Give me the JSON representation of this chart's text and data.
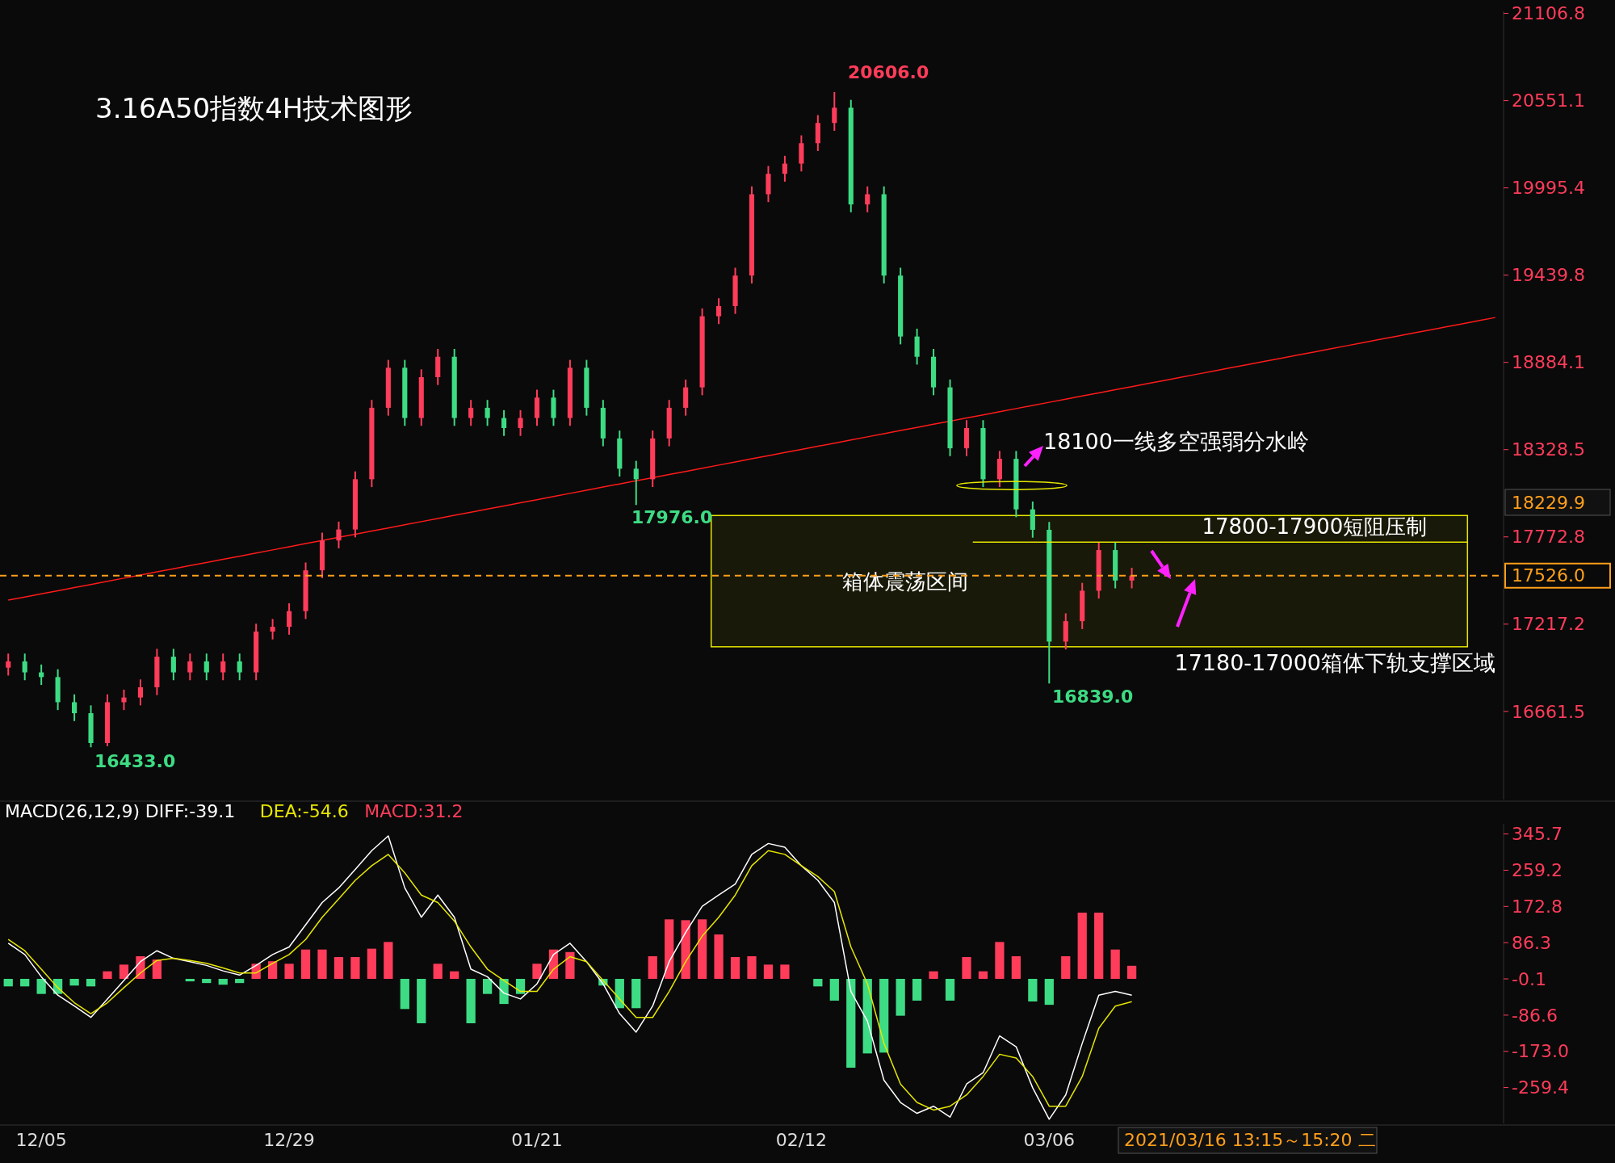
{
  "chart_data": [
    {
      "type": "candlestick",
      "title": "3.16A50指数4H技术图形",
      "categories": [
        null,
        null,
        null,
        null,
        null,
        null,
        null,
        null,
        null,
        null,
        null,
        null,
        null,
        null,
        null,
        null,
        null,
        null,
        null,
        null,
        null,
        null,
        null,
        null,
        null,
        null,
        null,
        null,
        null,
        null,
        null,
        null,
        null,
        null,
        null,
        null,
        null,
        null,
        null,
        null,
        null,
        null,
        null,
        null,
        null,
        null,
        null,
        null,
        null,
        null,
        null,
        null,
        null,
        null,
        null,
        null,
        null,
        null,
        null,
        null,
        null,
        null,
        null,
        null,
        null,
        null,
        null,
        null,
        null,
        null,
        null,
        null,
        null,
        null,
        null,
        null,
        null,
        null,
        null,
        null,
        null,
        null,
        null,
        null,
        null,
        null,
        null,
        null,
        null,
        null,
        null
      ],
      "ohlc": [
        [
          16940,
          17030,
          16890,
          16980
        ],
        [
          16980,
          17030,
          16860,
          16910
        ],
        [
          16910,
          16960,
          16830,
          16880
        ],
        [
          16880,
          16930,
          16670,
          16720
        ],
        [
          16720,
          16770,
          16600,
          16650
        ],
        [
          16650,
          16700,
          16433,
          16460
        ],
        [
          16460,
          16770,
          16440,
          16720
        ],
        [
          16720,
          16800,
          16670,
          16750
        ],
        [
          16750,
          16865,
          16700,
          16815
        ],
        [
          16815,
          17060,
          16765,
          17010
        ],
        [
          17010,
          17060,
          16860,
          16910
        ],
        [
          16910,
          17030,
          16860,
          16980
        ],
        [
          16980,
          17030,
          16860,
          16910
        ],
        [
          16910,
          17030,
          16860,
          16980
        ],
        [
          16980,
          17030,
          16860,
          16910
        ],
        [
          16910,
          17220,
          16860,
          17170
        ],
        [
          17170,
          17250,
          17120,
          17200
        ],
        [
          17200,
          17350,
          17150,
          17300
        ],
        [
          17300,
          17610,
          17250,
          17560
        ],
        [
          17560,
          17800,
          17510,
          17750
        ],
        [
          17750,
          17870,
          17700,
          17820
        ],
        [
          17820,
          18190,
          17770,
          18140
        ],
        [
          18140,
          18645,
          18090,
          18595
        ],
        [
          18595,
          18900,
          18545,
          18850
        ],
        [
          18850,
          18900,
          18480,
          18530
        ],
        [
          18530,
          18840,
          18480,
          18790
        ],
        [
          18790,
          18970,
          18740,
          18920
        ],
        [
          18920,
          18970,
          18480,
          18530
        ],
        [
          18530,
          18645,
          18480,
          18595
        ],
        [
          18595,
          18645,
          18480,
          18530
        ],
        [
          18530,
          18580,
          18416,
          18466
        ],
        [
          18466,
          18580,
          18416,
          18530
        ],
        [
          18530,
          18710,
          18480,
          18660
        ],
        [
          18660,
          18710,
          18480,
          18530
        ],
        [
          18530,
          18900,
          18480,
          18850
        ],
        [
          18850,
          18900,
          18545,
          18595
        ],
        [
          18595,
          18645,
          18350,
          18400
        ],
        [
          18400,
          18450,
          18157,
          18207
        ],
        [
          18207,
          18257,
          17976,
          18140
        ],
        [
          18140,
          18450,
          18090,
          18400
        ],
        [
          18400,
          18645,
          18350,
          18595
        ],
        [
          18595,
          18775,
          18545,
          18725
        ],
        [
          18725,
          19228,
          18675,
          19178
        ],
        [
          19178,
          19293,
          19128,
          19243
        ],
        [
          19243,
          19487,
          19193,
          19437
        ],
        [
          19437,
          20005,
          19387,
          19955
        ],
        [
          19955,
          20135,
          19905,
          20085
        ],
        [
          20085,
          20200,
          20035,
          20150
        ],
        [
          20150,
          20330,
          20100,
          20280
        ],
        [
          20280,
          20459,
          20230,
          20409
        ],
        [
          20409,
          20606,
          20359,
          20506
        ],
        [
          20506,
          20556,
          19840,
          19890
        ],
        [
          19890,
          20005,
          19840,
          19955
        ],
        [
          19955,
          20005,
          19387,
          19437
        ],
        [
          19437,
          19487,
          18999,
          19049
        ],
        [
          19049,
          19099,
          18870,
          18920
        ],
        [
          18920,
          18970,
          18675,
          18725
        ],
        [
          18725,
          18775,
          18287,
          18337
        ],
        [
          18337,
          18516,
          18287,
          18466
        ],
        [
          18466,
          18516,
          18090,
          18140
        ],
        [
          18140,
          18320,
          18090,
          18270
        ],
        [
          18270,
          18320,
          17898,
          17948
        ],
        [
          17948,
          17998,
          17768,
          17818
        ],
        [
          17818,
          17868,
          16839,
          17106
        ],
        [
          17106,
          17286,
          17056,
          17236
        ],
        [
          17236,
          17480,
          17186,
          17430
        ],
        [
          17430,
          17739,
          17380,
          17689
        ],
        [
          17689,
          17739,
          17445,
          17495
        ],
        [
          17495,
          17576,
          17445,
          17526
        ],
        null,
        null,
        null,
        null,
        null,
        null,
        null,
        null,
        null,
        null,
        null,
        null,
        null,
        null,
        null,
        null,
        null,
        null,
        null,
        null,
        null,
        null
      ],
      "colors": [
        "#ff3c5a",
        "#3ddc84",
        "#3ddc84",
        "#3ddc84",
        "#3ddc84",
        "#3ddc84",
        "#ff3c5a",
        "#ff3c5a",
        "#ff3c5a",
        "#ff3c5a",
        "#3ddc84",
        "#ff3c5a",
        "#3ddc84",
        "#ff3c5a",
        "#3ddc84",
        "#ff3c5a",
        "#ff3c5a",
        "#ff3c5a",
        "#ff3c5a",
        "#ff3c5a",
        "#ff3c5a",
        "#ff3c5a",
        "#ff3c5a",
        "#ff3c5a",
        "#3ddc84",
        "#ff3c5a",
        "#ff3c5a",
        "#3ddc84",
        "#ff3c5a",
        "#3ddc84",
        "#3ddc84",
        "#ff3c5a",
        "#ff3c5a",
        "#3ddc84",
        "#ff3c5a",
        "#3ddc84",
        "#3ddc84",
        "#3ddc84",
        "#3ddc84",
        "#ff3c5a",
        "#ff3c5a",
        "#ff3c5a",
        "#ff3c5a",
        "#ff3c5a",
        "#ff3c5a",
        "#ff3c5a",
        "#ff3c5a",
        "#ff3c5a",
        "#ff3c5a",
        "#ff3c5a",
        "#ff3c5a",
        "#3ddc84",
        "#ff3c5a",
        "#3ddc84",
        "#3ddc84",
        "#3ddc84",
        "#3ddc84",
        "#3ddc84",
        "#ff3c5a",
        "#3ddc84",
        "#ff3c5a",
        "#3ddc84",
        "#3ddc84",
        "#3ddc84",
        "#ff3c5a",
        "#ff3c5a",
        "#ff3c5a",
        "#3ddc84",
        "#ff3c5a",
        null,
        null,
        null,
        null,
        null,
        null,
        null,
        null,
        null,
        null,
        null,
        null,
        null,
        null,
        null,
        null,
        null,
        null,
        null,
        null,
        null,
        null
      ],
      "series": [
        {
          "type": "line",
          "color": "#ff1a1a",
          "values": [
            17370,
            17390,
            17410,
            17430,
            17450,
            17470,
            17490,
            17510,
            17530,
            17550,
            17570,
            17590,
            17610,
            17630,
            17650,
            17670,
            17690,
            17710,
            17730,
            17750,
            17770,
            17790,
            17810,
            17830,
            17850,
            17870,
            17890,
            17910,
            17930,
            17950,
            17970,
            17990,
            18010,
            18030,
            18050,
            18070,
            18090,
            18110,
            18130,
            18150,
            18170,
            18190,
            18210,
            18230,
            18250,
            18270,
            18290,
            18310,
            18330,
            18350,
            18370,
            18390,
            18410,
            18430,
            18450,
            18470,
            18490,
            18510,
            18530,
            18550,
            18570,
            18590,
            18610,
            18630,
            18650,
            18670,
            18690,
            18710,
            18730,
            18750,
            18770,
            18790,
            18810,
            18830,
            18850,
            18870,
            18890,
            18910,
            18930,
            18950,
            18970,
            18990,
            19010,
            19030,
            19050,
            19070,
            19090,
            19110,
            19130,
            19150,
            19170
          ]
        }
      ],
      "ylim": [
        16100,
        21120
      ],
      "yticks": [
        16661.5,
        17217.2,
        17772.8,
        18328.5,
        18884.1,
        19439.8,
        19995.4,
        20551.1,
        21106.8
      ],
      "tick_labels": "y",
      "ref_lines": [
        {
          "axis": "y",
          "value": 17526.0,
          "label": "17526.0",
          "color": "#ff9f1a",
          "line_style": "dashed"
        },
        {
          "axis": "y",
          "value": 17740,
          "label": "17800-17900短阻压制",
          "color": "#e6e600",
          "line_style": "solid"
        }
      ],
      "bands": [
        {
          "axis": "y",
          "from": 17073,
          "to": 17909,
          "label": "箱体震荡区间",
          "color": "#e6e600"
        }
      ],
      "annotations": [
        "20606.0",
        "17976.0",
        "16839.0",
        "16433.0",
        "18100一线多空强弱分水岭",
        "17180-17000箱体下轨支撑区域",
        "18229.9"
      ]
    },
    {
      "type": "bar",
      "title": "MACD(26,12,9)",
      "legend": "top left",
      "categories": [
        null,
        null,
        "12/05",
        null,
        null,
        null,
        null,
        null,
        null,
        null,
        null,
        null,
        null,
        null,
        null,
        null,
        null,
        "12/29",
        null,
        null,
        null,
        null,
        null,
        null,
        null,
        null,
        null,
        null,
        null,
        null,
        null,
        null,
        "01/21",
        null,
        null,
        null,
        null,
        null,
        null,
        null,
        null,
        null,
        null,
        null,
        null,
        null,
        null,
        null,
        "02/12",
        null,
        null,
        null,
        null,
        null,
        null,
        null,
        null,
        null,
        null,
        null,
        null,
        null,
        null,
        "03/06",
        null,
        null,
        null,
        null,
        null,
        null,
        null,
        null,
        null,
        null,
        null,
        null,
        null,
        null,
        null,
        null,
        null,
        null,
        null,
        null,
        null,
        null,
        null,
        null,
        null,
        null,
        null
      ],
      "series": [
        {
          "name": "DIFF:-39.1",
          "type": "line",
          "color": "#ffffff",
          "values": [
            85,
            58,
            5,
            -39,
            -65,
            -92,
            -48,
            -4,
            41,
            67,
            49,
            41,
            32,
            19,
            9,
            32,
            58,
            76,
            129,
            182,
            217,
            261,
            306,
            341,
            217,
            147,
            200,
            147,
            23,
            5,
            -34,
            -48,
            -12,
            58,
            85,
            41,
            -12,
            -83,
            -127,
            -65,
            41,
            111,
            173,
            200,
            226,
            297,
            323,
            314,
            270,
            235,
            182,
            -30,
            -101,
            -242,
            -295,
            -321,
            -304,
            -330,
            -251,
            -224,
            -136,
            -162,
            -260,
            -335,
            -277,
            -154,
            -39,
            -30,
            -39.1,
            null,
            null,
            null,
            null,
            null,
            null,
            null,
            null,
            null,
            null,
            null,
            null,
            null,
            null,
            null,
            null,
            null,
            null,
            null,
            null,
            null,
            null
          ]
        },
        {
          "name": "DEA:-54.6",
          "type": "line",
          "color": "#e6e600",
          "values": [
            94,
            67,
            23,
            -21,
            -57,
            -83,
            -57,
            -21,
            14,
            44,
            49,
            44,
            37,
            26,
            14,
            14,
            37,
            58,
            94,
            147,
            191,
            235,
            270,
            297,
            253,
            200,
            182,
            138,
            76,
            23,
            -4,
            -30,
            -30,
            23,
            53,
            41,
            -4,
            -48,
            -92,
            -92,
            -30,
            41,
            102,
            147,
            200,
            270,
            306,
            297,
            270,
            244,
            208,
            76,
            -12,
            -154,
            -251,
            -295,
            -313,
            -304,
            -277,
            -233,
            -180,
            -189,
            -233,
            -304,
            -304,
            -233,
            -118,
            -65,
            -54.6,
            null,
            null,
            null,
            null,
            null,
            null,
            null,
            null,
            null,
            null,
            null,
            null,
            null,
            null,
            null,
            null,
            null,
            null,
            null,
            null,
            null,
            null
          ]
        },
        {
          "name": "MACD:31.2",
          "type": "bar",
          "color": "#ff3c5a",
          "values": [
            -18,
            -18,
            -36,
            -36,
            -16,
            -18,
            18,
            34,
            54,
            46,
            0,
            -6,
            -10,
            -14,
            -10,
            36,
            42,
            36,
            70,
            70,
            52,
            52,
            72,
            88,
            -72,
            -106,
            36,
            18,
            -106,
            -36,
            -60,
            -36,
            36,
            70,
            64,
            0,
            -16,
            -70,
            -70,
            54,
            142,
            140,
            142,
            106,
            52,
            54,
            34,
            34,
            0,
            -18,
            -52,
            -212,
            -178,
            -176,
            -88,
            -52,
            18,
            -52,
            52,
            18,
            88,
            54,
            -54,
            -62,
            54,
            158,
            158,
            70,
            31.2,
            null,
            null,
            null,
            null,
            null,
            null,
            null,
            null,
            null,
            null,
            null,
            null,
            null,
            null,
            null,
            null,
            null,
            null,
            null,
            null,
            null,
            null
          ],
          "colors": [
            "#3ddc84",
            "#3ddc84",
            "#3ddc84",
            "#3ddc84",
            "#3ddc84",
            "#3ddc84",
            "#ff3c5a",
            "#ff3c5a",
            "#ff3c5a",
            "#ff3c5a",
            "#ff3c5a",
            "#3ddc84",
            "#3ddc84",
            "#3ddc84",
            "#3ddc84",
            "#ff3c5a",
            "#ff3c5a",
            "#ff3c5a",
            "#ff3c5a",
            "#ff3c5a",
            "#ff3c5a",
            "#ff3c5a",
            "#ff3c5a",
            "#ff3c5a",
            "#3ddc84",
            "#3ddc84",
            "#ff3c5a",
            "#ff3c5a",
            "#3ddc84",
            "#3ddc84",
            "#3ddc84",
            "#3ddc84",
            "#ff3c5a",
            "#ff3c5a",
            "#ff3c5a",
            "#ff3c5a",
            "#3ddc84",
            "#3ddc84",
            "#3ddc84",
            "#ff3c5a",
            "#ff3c5a",
            "#ff3c5a",
            "#ff3c5a",
            "#ff3c5a",
            "#ff3c5a",
            "#ff3c5a",
            "#ff3c5a",
            "#ff3c5a",
            "#ff3c5a",
            "#3ddc84",
            "#3ddc84",
            "#3ddc84",
            "#3ddc84",
            "#3ddc84",
            "#3ddc84",
            "#3ddc84",
            "#ff3c5a",
            "#3ddc84",
            "#ff3c5a",
            "#ff3c5a",
            "#ff3c5a",
            "#ff3c5a",
            "#3ddc84",
            "#3ddc84",
            "#ff3c5a",
            "#ff3c5a",
            "#ff3c5a",
            "#ff3c5a",
            "#ff3c5a",
            null,
            null,
            null,
            null,
            null,
            null,
            null,
            null,
            null,
            null,
            null,
            null,
            null,
            null,
            null,
            null,
            null,
            null,
            null,
            null,
            null,
            null
          ]
        }
      ],
      "ylim": [
        -345,
        370
      ],
      "yticks": [
        345.7,
        259.2,
        172.8,
        86.3,
        -0.1,
        -86.6,
        {
          "value": -173,
          "label": "-173.0"
        },
        -259.4
      ],
      "annotations": [
        "2021/03/16 13:15～15:20 二"
      ]
    }
  ]
}
